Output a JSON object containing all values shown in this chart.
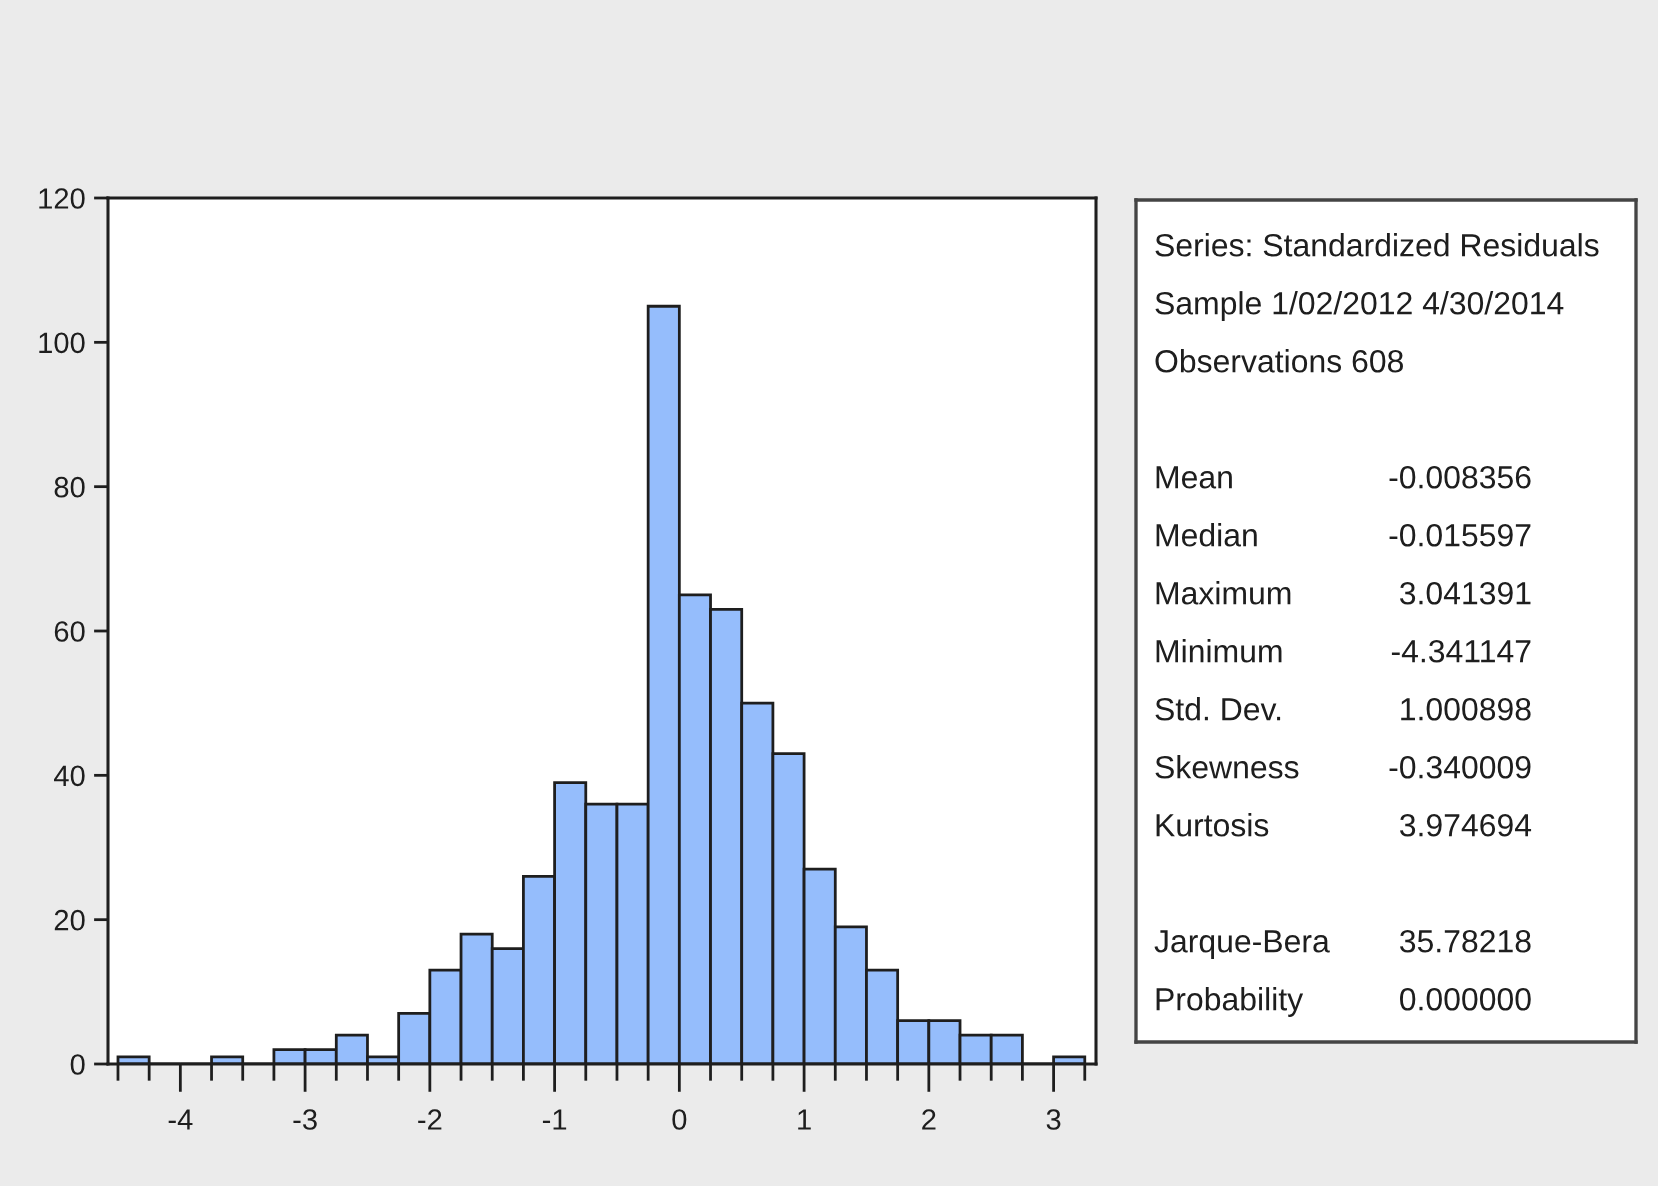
{
  "chart_data": {
    "type": "histogram",
    "bins": [
      -4.5,
      -4.25,
      -4,
      -3.75,
      -3.5,
      -3.25,
      -3,
      -2.75,
      -2.5,
      -2.25,
      -2,
      -1.75,
      -1.5,
      -1.25,
      -1,
      -0.75,
      -0.5,
      -0.25,
      0,
      0.25,
      0.5,
      0.75,
      1,
      1.25,
      1.5,
      1.75,
      2,
      2.25,
      2.5,
      2.75,
      3,
      3.25
    ],
    "values": [
      1,
      0,
      0,
      1,
      0,
      2,
      2,
      4,
      1,
      7,
      13,
      18,
      16,
      26,
      39,
      36,
      36,
      105,
      65,
      63,
      50,
      43,
      27,
      19,
      13,
      6,
      6,
      4,
      4,
      0,
      1
    ],
    "color": "#95bdfc",
    "xlim": [
      -4.58,
      3.34
    ],
    "ylim": [
      0,
      120
    ],
    "xticks": [
      {
        "value": -4.5,
        "label": null
      },
      {
        "value": -4.25,
        "label": null
      },
      -4,
      {
        "value": -3.75,
        "label": null
      },
      {
        "value": -3.5,
        "label": null
      },
      {
        "value": -3.25,
        "label": null
      },
      -3,
      {
        "value": -2.75,
        "label": null
      },
      {
        "value": -2.5,
        "label": null
      },
      {
        "value": -2.25,
        "label": null
      },
      -2,
      {
        "value": -1.75,
        "label": null
      },
      {
        "value": -1.5,
        "label": null
      },
      {
        "value": -1.25,
        "label": null
      },
      -1,
      {
        "value": -0.75,
        "label": null
      },
      {
        "value": -0.5,
        "label": null
      },
      {
        "value": -0.25,
        "label": null
      },
      0,
      {
        "value": 0.25,
        "label": null
      },
      {
        "value": 0.5,
        "label": null
      },
      {
        "value": 0.75,
        "label": null
      },
      1,
      {
        "value": 1.25,
        "label": null
      },
      {
        "value": 1.5,
        "label": null
      },
      {
        "value": 1.75,
        "label": null
      },
      2,
      {
        "value": 2.25,
        "label": null
      },
      {
        "value": 2.5,
        "label": null
      },
      {
        "value": 2.75,
        "label": null
      },
      3,
      {
        "value": 3.25,
        "label": null
      }
    ],
    "yticks": [
      0,
      20,
      40,
      60,
      80,
      100,
      120
    ],
    "annotations": [
      "Series: Standardized Residuals\nSample 1/02/2012 4/30/2014\nObservations 608",
      "Mean\t-0.008356\nMedian\t-0.015597\nMaximum\t3.041391\nMinimum\t-4.341147\nStd. Dev.\t1.000898\nSkewness\t-0.340009\nKurtosis\t3.974694",
      "Jarque-Bera\t35.78218\nProbability\t0.000000"
    ]
  }
}
